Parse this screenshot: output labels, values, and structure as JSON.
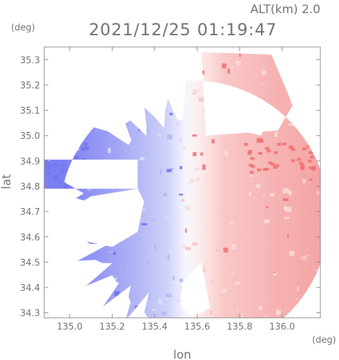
{
  "header": {
    "altitude_label": "ALT(km) 2.0",
    "timestamp": "2021/12/25 01:19:47"
  },
  "chart_data": {
    "type": "heatmap",
    "title": "2021/12/25 01:19:47",
    "subtitle": "ALT(km) 2.0",
    "xlabel": "lon",
    "ylabel": "lat",
    "x_unit": "(deg)",
    "y_unit": "(deg)",
    "xlim": [
      134.88,
      136.18
    ],
    "ylim": [
      34.28,
      35.35
    ],
    "x_ticks": [
      "135.0",
      "135.2",
      "135.4",
      "135.6",
      "135.8",
      "136.0"
    ],
    "x_tick_values": [
      135.0,
      135.2,
      135.4,
      135.6,
      135.8,
      136.0
    ],
    "y_ticks": [
      "34.3",
      "34.4",
      "34.5",
      "34.6",
      "34.7",
      "34.8",
      "34.9",
      "35.0",
      "35.1",
      "35.2",
      "35.3"
    ],
    "y_tick_values": [
      34.3,
      34.4,
      34.5,
      34.6,
      34.7,
      34.8,
      34.9,
      35.0,
      35.1,
      35.2,
      35.3
    ],
    "colors": {
      "negative": "#7b7ef0",
      "neutral": "#ffffff",
      "positive": "#f25a5a",
      "axis": "#8a8a8a"
    },
    "radar_center": [
      135.58,
      34.68
    ],
    "radar_radius_deg": 0.64
  }
}
